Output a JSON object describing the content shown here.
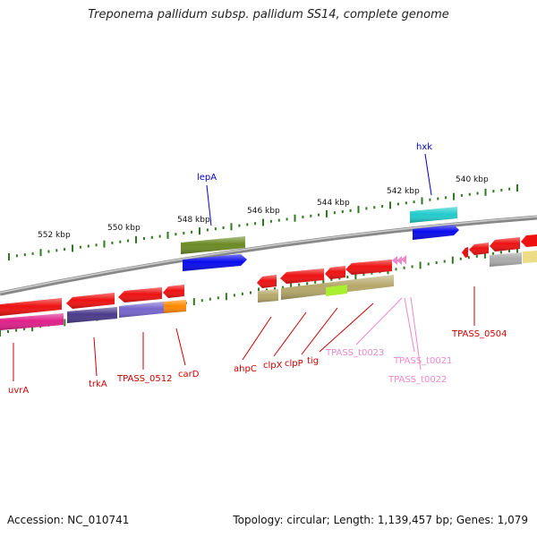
{
  "title": "Treponema pallidum subsp. pallidum SS14, complete genome",
  "footer": {
    "accession": "Accession: NC_010741",
    "stats": "Topology: circular; Length: 1,139,457 bp; Genes: 1,079"
  },
  "scale_labels": [
    "552 kbp",
    "550 kbp",
    "548 kbp",
    "546 kbp",
    "544 kbp",
    "542 kbp",
    "540 kbp"
  ],
  "gene_labels": [
    "uvrA",
    "trkA",
    "TPASS_0512",
    "carD",
    "ahpC",
    "clpX",
    "clpP",
    "tig",
    "TPASS_t0023",
    "TPASS_t0021",
    "TPASS_t0022",
    "TPASS_0504",
    "lepA",
    "hxk"
  ],
  "colors": {
    "gene_red": "#ee1111",
    "trna_pink": "#ee88cc",
    "label_red": "#cc0000",
    "label_blue": "#0000cc",
    "tick_green": "#2d7a1e",
    "backbone": "#888888"
  }
}
